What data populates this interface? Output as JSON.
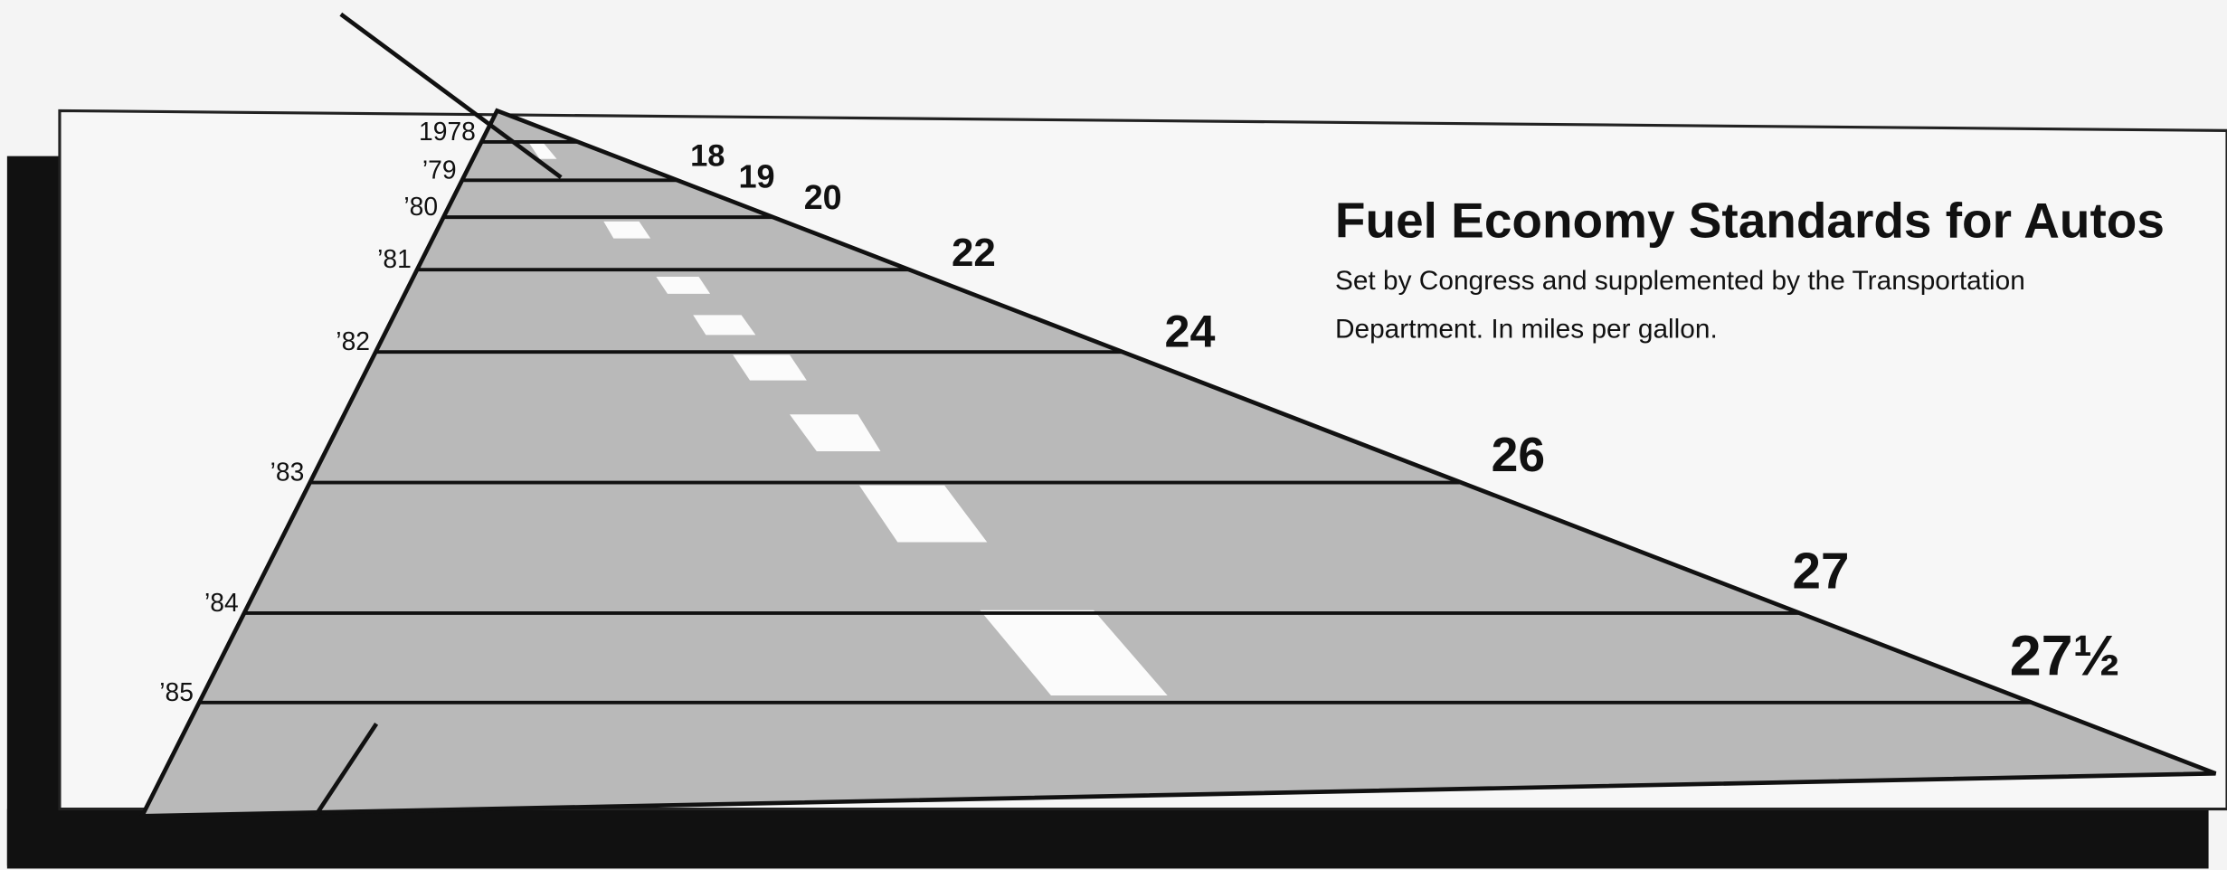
{
  "chart_data": {
    "type": "road",
    "title": "Fuel Economy Standards for Autos",
    "subtitle": "Set by Congress and supplemented by the Transportation Department. In miles per gallon.",
    "categories": [
      "1978",
      "’79",
      "’80",
      "’81",
      "’82",
      "’83",
      "’84",
      "’85"
    ],
    "values": [
      18,
      19,
      20,
      22,
      24,
      26,
      27,
      27.5
    ],
    "value_labels": [
      "18",
      "19",
      "20",
      "22",
      "24",
      "26",
      "27",
      "27½"
    ]
  }
}
